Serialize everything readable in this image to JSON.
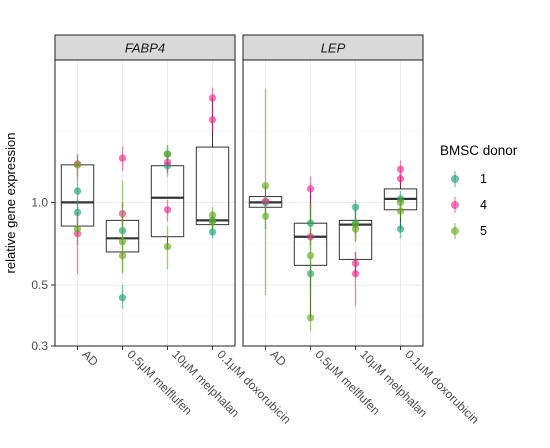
{
  "chart_data": {
    "type": "box-scatter",
    "ylabel": "relative gene expression",
    "y_scale": "log",
    "ylim": [
      0.3,
      3.3
    ],
    "y_ticks": [
      0.3,
      0.5,
      1.0
    ],
    "y_tick_labels": [
      "0.3",
      "0.5",
      "1.0"
    ],
    "grid": true,
    "categories": [
      "AD",
      "0.5μM melflufen",
      "10μM melphalan",
      "0.1μM doxorubicin"
    ],
    "legend": {
      "title": "BMSC donor",
      "position": "right",
      "entries": [
        {
          "label": "1",
          "color": "#1b9e77"
        },
        {
          "label": "4",
          "color": "#e7298a"
        },
        {
          "label": "5",
          "color": "#66a61e"
        }
      ]
    },
    "panels": [
      {
        "title": "FABP4",
        "boxes": [
          {
            "category": "AD",
            "q1": 0.82,
            "median": 1.0,
            "q3": 1.37,
            "whisker_low": 0.76,
            "whisker_high": 1.4
          },
          {
            "category": "0.5μM melflufen",
            "q1": 0.66,
            "median": 0.74,
            "q3": 0.86,
            "whisker_low": 0.66,
            "whisker_high": 0.86
          },
          {
            "category": "10μM melphalan",
            "q1": 0.75,
            "median": 1.04,
            "q3": 1.36,
            "whisker_low": 0.68,
            "whisker_high": 1.44
          },
          {
            "category": "0.1μM doxorubicin",
            "q1": 0.83,
            "median": 0.86,
            "q3": 1.59,
            "whisker_low": 0.79,
            "whisker_high": 2.4
          }
        ],
        "points": [
          {
            "category": "AD",
            "donor": "1",
            "y": 1.1,
            "err_low": 0.94,
            "err_high": 1.22
          },
          {
            "category": "AD",
            "donor": "1",
            "y": 0.92,
            "err_low": 0.78,
            "err_high": 1.02
          },
          {
            "category": "AD",
            "donor": "4",
            "y": 1.38,
            "err_low": 1.22,
            "err_high": 1.5
          },
          {
            "category": "AD",
            "donor": "4",
            "y": 0.77,
            "err_low": 0.55,
            "err_high": 0.92
          },
          {
            "category": "AD",
            "donor": "5",
            "y": 1.37,
            "err_low": 1.24,
            "err_high": 1.48
          },
          {
            "category": "AD",
            "donor": "5",
            "y": 0.8,
            "err_low": 0.7,
            "err_high": 0.9
          },
          {
            "category": "0.5μM melflufen",
            "donor": "1",
            "y": 0.79,
            "err_low": 0.7,
            "err_high": 0.88
          },
          {
            "category": "0.5μM melflufen",
            "donor": "1",
            "y": 0.45,
            "err_low": 0.41,
            "err_high": 0.5
          },
          {
            "category": "0.5μM melflufen",
            "donor": "4",
            "y": 1.45,
            "err_low": 1.3,
            "err_high": 1.6
          },
          {
            "category": "0.5μM melflufen",
            "donor": "4",
            "y": 0.91,
            "err_low": 0.82,
            "err_high": 1.0
          },
          {
            "category": "0.5μM melflufen",
            "donor": "5",
            "y": 0.72,
            "err_low": 0.55,
            "err_high": 1.2
          },
          {
            "category": "0.5μM melflufen",
            "donor": "5",
            "y": 0.64,
            "err_low": 0.56,
            "err_high": 0.72
          },
          {
            "category": "10μM melphalan",
            "donor": "1",
            "y": 1.5,
            "err_low": 1.38,
            "err_high": 1.62
          },
          {
            "category": "10μM melphalan",
            "donor": "1",
            "y": 1.36,
            "err_low": 1.24,
            "err_high": 1.46
          },
          {
            "category": "10μM melphalan",
            "donor": "4",
            "y": 0.94,
            "err_low": 0.85,
            "err_high": 1.02
          },
          {
            "category": "10μM melphalan",
            "donor": "4",
            "y": 1.4,
            "err_low": 1.28,
            "err_high": 1.5
          },
          {
            "category": "10μM melphalan",
            "donor": "5",
            "y": 0.69,
            "err_low": 0.57,
            "err_high": 0.82
          },
          {
            "category": "10μM melphalan",
            "donor": "5",
            "y": 1.5,
            "err_low": 1.4,
            "err_high": 1.6
          },
          {
            "category": "0.1μM doxorubicin",
            "donor": "1",
            "y": 0.86,
            "err_low": 0.8,
            "err_high": 0.9
          },
          {
            "category": "0.1μM doxorubicin",
            "donor": "1",
            "y": 0.78,
            "err_low": 0.74,
            "err_high": 0.84
          },
          {
            "category": "0.1μM doxorubicin",
            "donor": "4",
            "y": 2.4,
            "err_low": 2.1,
            "err_high": 2.62
          },
          {
            "category": "0.1μM doxorubicin",
            "donor": "4",
            "y": 2.0,
            "err_low": 1.78,
            "err_high": 2.2
          },
          {
            "category": "0.1μM doxorubicin",
            "donor": "5",
            "y": 0.9,
            "err_low": 0.84,
            "err_high": 0.96
          },
          {
            "category": "0.1μM doxorubicin",
            "donor": "5",
            "y": 0.85,
            "err_low": 0.79,
            "err_high": 0.91
          }
        ]
      },
      {
        "title": "LEP",
        "boxes": [
          {
            "category": "AD",
            "q1": 0.96,
            "median": 1.0,
            "q3": 1.05,
            "whisker_low": 0.9,
            "whisker_high": 1.15
          },
          {
            "category": "0.5μM melflufen",
            "q1": 0.59,
            "median": 0.75,
            "q3": 0.84,
            "whisker_low": 0.38,
            "whisker_high": 1.12
          },
          {
            "category": "10μM melphalan",
            "q1": 0.62,
            "median": 0.83,
            "q3": 0.86,
            "whisker_low": 0.54,
            "whisker_high": 0.94
          },
          {
            "category": "0.1μM doxorubicin",
            "q1": 0.94,
            "median": 1.03,
            "q3": 1.12,
            "whisker_low": 0.8,
            "whisker_high": 1.25
          }
        ],
        "points": [
          {
            "category": "AD",
            "donor": "1",
            "y": 1.0,
            "err_low": 0.96,
            "err_high": 1.03
          },
          {
            "category": "AD",
            "donor": "4",
            "y": 1.01,
            "err_low": 0.97,
            "err_high": 1.04
          },
          {
            "category": "AD",
            "donor": "5",
            "y": 1.15,
            "err_low": 0.46,
            "err_high": 2.6
          },
          {
            "category": "AD",
            "donor": "5",
            "y": 0.89,
            "err_low": 0.8,
            "err_high": 0.98
          },
          {
            "category": "0.5μM melflufen",
            "donor": "1",
            "y": 0.84,
            "err_low": 0.66,
            "err_high": 0.98
          },
          {
            "category": "0.5μM melflufen",
            "donor": "1",
            "y": 0.55,
            "err_low": 0.48,
            "err_high": 0.62
          },
          {
            "category": "0.5μM melflufen",
            "donor": "4",
            "y": 1.12,
            "err_low": 0.95,
            "err_high": 1.24
          },
          {
            "category": "0.5μM melflufen",
            "donor": "4",
            "y": 0.75,
            "err_low": 0.7,
            "err_high": 0.8
          },
          {
            "category": "0.5μM melflufen",
            "donor": "5",
            "y": 0.38,
            "err_low": 0.34,
            "err_high": 0.42
          },
          {
            "category": "0.5μM melflufen",
            "donor": "5",
            "y": 0.64,
            "err_low": 0.42,
            "err_high": 1.0
          },
          {
            "category": "10μM melphalan",
            "donor": "1",
            "y": 0.96,
            "err_low": 0.9,
            "err_high": 1.02
          },
          {
            "category": "10μM melphalan",
            "donor": "1",
            "y": 0.84,
            "err_low": 0.76,
            "err_high": 0.92
          },
          {
            "category": "10μM melphalan",
            "donor": "4",
            "y": 0.55,
            "err_low": 0.42,
            "err_high": 0.66
          },
          {
            "category": "10μM melphalan",
            "donor": "4",
            "y": 0.6,
            "err_low": 0.54,
            "err_high": 0.66
          },
          {
            "category": "10μM melphalan",
            "donor": "5",
            "y": 0.83,
            "err_low": 0.72,
            "err_high": 0.94
          },
          {
            "category": "10μM melphalan",
            "donor": "5",
            "y": 0.8,
            "err_low": 0.72,
            "err_high": 0.88
          },
          {
            "category": "0.1μM doxorubicin",
            "donor": "1",
            "y": 0.8,
            "err_low": 0.74,
            "err_high": 0.86
          },
          {
            "category": "0.1μM doxorubicin",
            "donor": "1",
            "y": 1.03,
            "err_low": 0.96,
            "err_high": 1.1
          },
          {
            "category": "0.1μM doxorubicin",
            "donor": "4",
            "y": 1.32,
            "err_low": 1.2,
            "err_high": 1.42
          },
          {
            "category": "0.1μM doxorubicin",
            "donor": "4",
            "y": 1.22,
            "err_low": 1.14,
            "err_high": 1.3
          },
          {
            "category": "0.1μM doxorubicin",
            "donor": "5",
            "y": 0.93,
            "err_low": 0.87,
            "err_high": 0.99
          },
          {
            "category": "0.1μM doxorubicin",
            "donor": "5",
            "y": 1.0,
            "err_low": 0.94,
            "err_high": 1.06
          }
        ]
      }
    ]
  }
}
